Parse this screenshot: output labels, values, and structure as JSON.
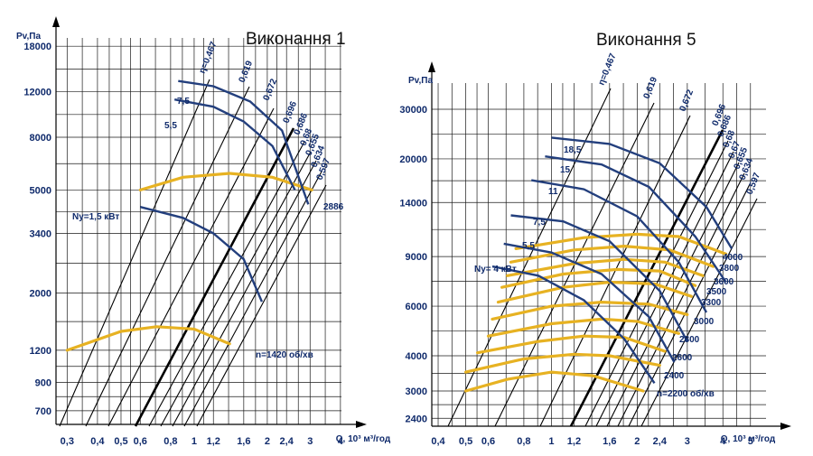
{
  "chart_data": [
    {
      "type": "line",
      "title": "Виконання 1",
      "ylabel": "Pv,Па",
      "xlabel": "Q, 10³ м³/год",
      "x_ticks": [
        "0,3",
        "0,4",
        "0,5",
        "0,6",
        "0,8",
        "1",
        "1,2",
        "1,6",
        "2",
        "2,4",
        "3",
        "4"
      ],
      "y_ticks": [
        "700",
        "900",
        "1200",
        "2000",
        "3400",
        "5000",
        "8000",
        "12000",
        "18000"
      ],
      "efficiency_labels": [
        "η=0,467",
        "0,619",
        "0,672",
        "0,696",
        "0,686",
        "0,68",
        "0,655",
        "0,634",
        "0,597"
      ],
      "power_labels": [
        "Ny=1,5 кВт",
        "5,5",
        "7,5"
      ],
      "rpm_labels": [
        "n=1420 об/хв",
        "2886"
      ],
      "curves": [
        {
          "name": "n=1420 об/хв",
          "kind": "speed",
          "points": [
            [
              0.3,
              1200
            ],
            [
              0.5,
              1420
            ],
            [
              0.7,
              1480
            ],
            [
              1.0,
              1450
            ],
            [
              1.4,
              1270
            ]
          ]
        },
        {
          "name": "2886",
          "kind": "speed",
          "points": [
            [
              0.6,
              5000
            ],
            [
              0.9,
              5600
            ],
            [
              1.4,
              5800
            ],
            [
              2.1,
              5600
            ],
            [
              3.05,
              5000
            ]
          ]
        },
        {
          "name": "Ny=1,5 кВт",
          "kind": "power",
          "points": [
            [
              0.6,
              4300
            ],
            [
              0.9,
              3900
            ],
            [
              1.2,
              3400
            ],
            [
              1.6,
              2700
            ],
            [
              1.9,
              1850
            ]
          ]
        },
        {
          "name": "5,5",
          "kind": "power",
          "points": [
            [
              0.83,
              11200
            ],
            [
              1.2,
              10500
            ],
            [
              1.6,
              9200
            ],
            [
              2.1,
              7400
            ],
            [
              2.6,
              5000
            ]
          ]
        },
        {
          "name": "7,5",
          "kind": "power",
          "points": [
            [
              0.86,
              13200
            ],
            [
              1.2,
              12600
            ],
            [
              1.7,
              11000
            ],
            [
              2.3,
              8500
            ],
            [
              2.95,
              4400
            ]
          ]
        }
      ],
      "ylim": [
        620,
        21000
      ],
      "xlim": [
        0.27,
        4.4
      ]
    },
    {
      "type": "line",
      "title": "Виконання 5",
      "ylabel": "Pv,Па",
      "xlabel": "Q, 10³ м³/год",
      "x_ticks": [
        "0,4",
        "0,5",
        "0,6",
        "0,8",
        "1",
        "1,2",
        "1,6",
        "2",
        "2,4",
        "3",
        "4",
        "5"
      ],
      "y_ticks": [
        "2400",
        "3000",
        "4000",
        "6000",
        "9000",
        "14000",
        "20000",
        "30000"
      ],
      "efficiency_labels": [
        "η=0,467",
        "0,619",
        "0,672",
        "0,696",
        "0,686",
        "0,68",
        "0,67",
        "0,655",
        "0,634",
        "0,597"
      ],
      "power_labels": [
        "Ny= 4 кВт",
        "5,5",
        "7,5",
        "11",
        "15",
        "18,5"
      ],
      "rpm_labels": [
        "n=2200 об/хв",
        "2400",
        "2600",
        "2800",
        "3000",
        "3300",
        "3500",
        "3600",
        "3800",
        "4000"
      ],
      "curves": [
        {
          "name": "n=2200 об/хв",
          "kind": "speed",
          "points": [
            [
              0.5,
              3000
            ],
            [
              0.7,
              3300
            ],
            [
              1.0,
              3500
            ],
            [
              1.4,
              3400
            ],
            [
              2.1,
              3000
            ]
          ]
        },
        {
          "name": "2400",
          "kind": "speed",
          "points": [
            [
              0.5,
              3500
            ],
            [
              0.8,
              3900
            ],
            [
              1.2,
              4050
            ],
            [
              1.6,
              4000
            ],
            [
              2.4,
              3700
            ]
          ]
        },
        {
          "name": "2600",
          "kind": "speed",
          "points": [
            [
              0.55,
              4100
            ],
            [
              0.9,
              4500
            ],
            [
              1.3,
              4700
            ],
            [
              1.8,
              4650
            ],
            [
              2.5,
              4150
            ]
          ]
        },
        {
          "name": "2800",
          "kind": "speed",
          "points": [
            [
              0.6,
              4700
            ],
            [
              1.0,
              5200
            ],
            [
              1.5,
              5400
            ],
            [
              2.0,
              5300
            ],
            [
              2.8,
              4800
            ]
          ]
        },
        {
          "name": "3000",
          "kind": "speed",
          "points": [
            [
              0.62,
              5400
            ],
            [
              1.0,
              6000
            ],
            [
              1.5,
              6200
            ],
            [
              2.2,
              6100
            ],
            [
              3.0,
              5600
            ]
          ]
        },
        {
          "name": "3300",
          "kind": "speed",
          "points": [
            [
              0.65,
              6200
            ],
            [
              1.1,
              7000
            ],
            [
              1.6,
              7300
            ],
            [
              2.3,
              7200
            ],
            [
              3.1,
              6500
            ]
          ]
        },
        {
          "name": "3500",
          "kind": "speed",
          "points": [
            [
              0.67,
              7000
            ],
            [
              1.1,
              7800
            ],
            [
              1.7,
              8100
            ],
            [
              2.4,
              8000
            ],
            [
              3.2,
              7100
            ]
          ]
        },
        {
          "name": "3600",
          "kind": "speed",
          "points": [
            [
              0.7,
              7700
            ],
            [
              1.2,
              8500
            ],
            [
              1.8,
              8800
            ],
            [
              2.5,
              8600
            ],
            [
              3.4,
              7700
            ]
          ]
        },
        {
          "name": "3800",
          "kind": "speed",
          "points": [
            [
              0.72,
              8600
            ],
            [
              1.2,
              9500
            ],
            [
              1.8,
              9800
            ],
            [
              2.6,
              9500
            ],
            [
              3.7,
              8300
            ]
          ]
        },
        {
          "name": "4000",
          "kind": "speed",
          "points": [
            [
              0.75,
              9600
            ],
            [
              1.3,
              10500
            ],
            [
              2.0,
              10800
            ],
            [
              2.8,
              10600
            ],
            [
              4.1,
              9200
            ]
          ]
        },
        {
          "name": "Ny= 4 кВт",
          "kind": "power",
          "points": [
            [
              0.62,
              8300
            ],
            [
              0.9,
              7700
            ],
            [
              1.3,
              6300
            ],
            [
              1.8,
              4600
            ],
            [
              2.3,
              3200
            ]
          ]
        },
        {
          "name": "5,5",
          "kind": "power",
          "points": [
            [
              0.68,
              10000
            ],
            [
              1.0,
              9300
            ],
            [
              1.5,
              7800
            ],
            [
              2.2,
              5500
            ],
            [
              2.7,
              3800
            ]
          ]
        },
        {
          "name": "7,5",
          "kind": "power",
          "points": [
            [
              0.72,
              12600
            ],
            [
              1.1,
              12000
            ],
            [
              1.6,
              10200
            ],
            [
              2.4,
              6800
            ],
            [
              3.0,
              4500
            ]
          ]
        },
        {
          "name": "11",
          "kind": "power",
          "points": [
            [
              0.85,
              16800
            ],
            [
              1.3,
              15600
            ],
            [
              2.0,
              12500
            ],
            [
              2.8,
              8600
            ],
            [
              3.5,
              5700
            ]
          ]
        },
        {
          "name": "15",
          "kind": "power",
          "points": [
            [
              0.95,
              20400
            ],
            [
              1.5,
              19100
            ],
            [
              2.2,
              15900
            ],
            [
              3.2,
              10600
            ],
            [
              4.1,
              7300
            ]
          ]
        },
        {
          "name": "18,5",
          "kind": "power",
          "points": [
            [
              1.0,
              23800
            ],
            [
              1.6,
              22600
            ],
            [
              2.4,
              19300
            ],
            [
              3.5,
              13500
            ],
            [
              4.3,
              9600
            ]
          ]
        }
      ],
      "ylim": [
        2250,
        40000
      ],
      "xlim": [
        0.38,
        6.1
      ]
    }
  ]
}
